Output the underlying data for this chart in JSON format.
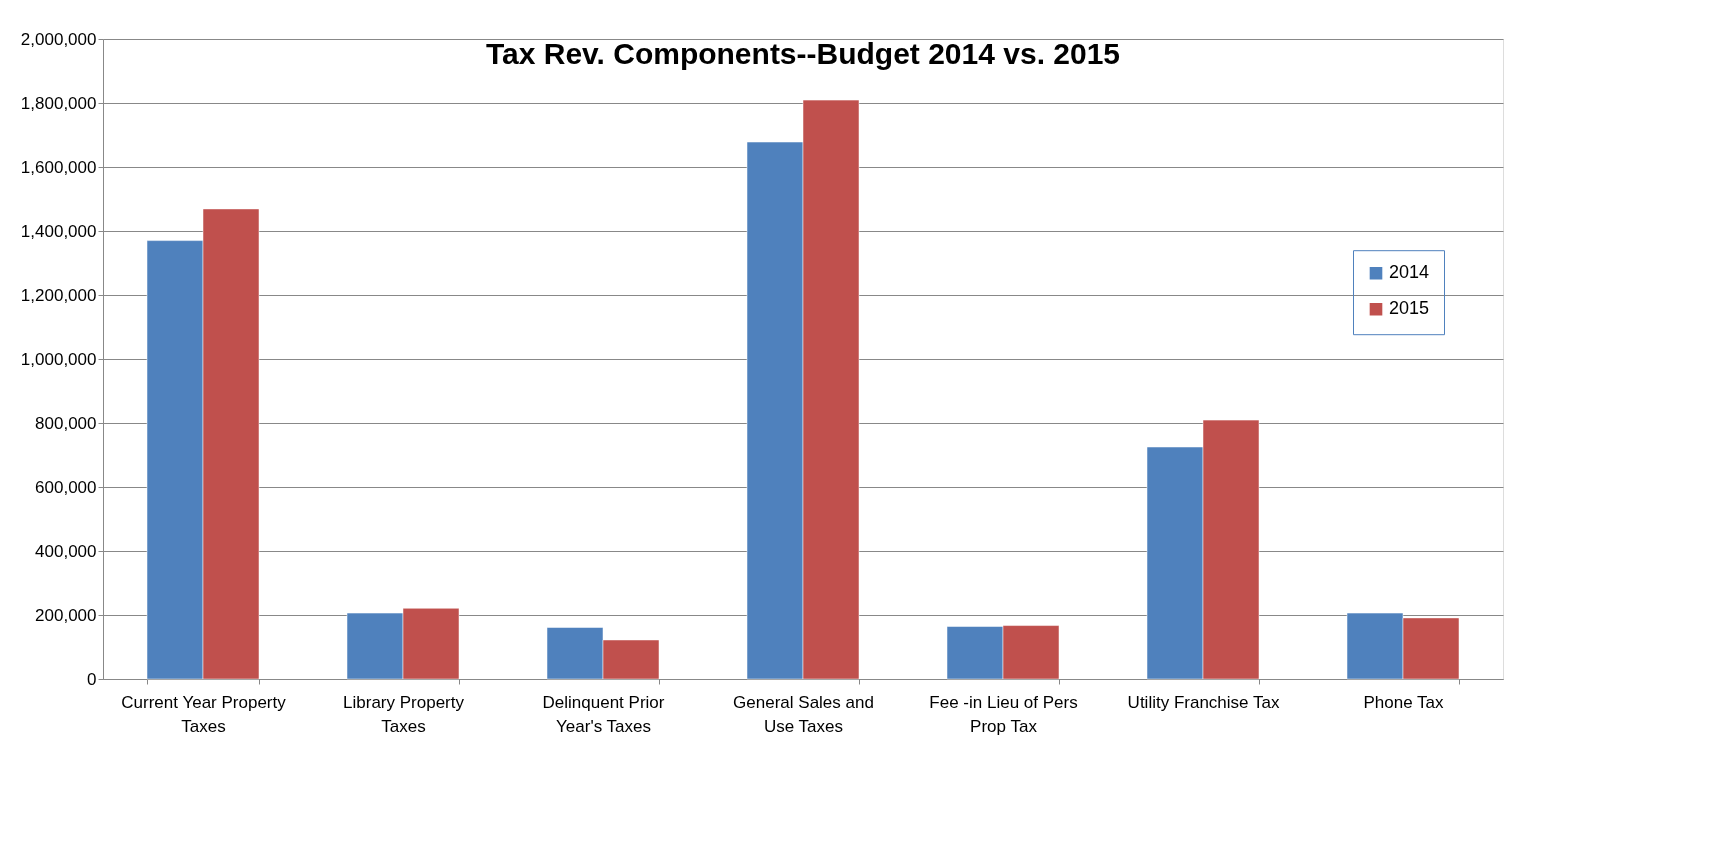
{
  "chart_data": {
    "type": "bar",
    "title": "Tax Rev. Components--Budget 2014 vs. 2015",
    "categories": [
      "Current Year Property Taxes",
      "Library Property Taxes",
      "Delinquent Prior Year's Taxes",
      "General Sales and Use Taxes",
      "Fee -in Lieu of Pers Prop Tax",
      "Utility Franchise Tax",
      "Phone Tax"
    ],
    "series": [
      {
        "name": "2014",
        "color": "#4f81bd",
        "values": [
          1370000,
          206000,
          161000,
          1678000,
          164000,
          725000,
          206000
        ]
      },
      {
        "name": "2015",
        "color": "#c0504d",
        "values": [
          1469000,
          221000,
          122000,
          1809000,
          167000,
          809000,
          191000
        ]
      }
    ],
    "ylim": [
      0,
      2000000
    ],
    "yticks": [
      0,
      {
        "value": 200000,
        "label": "200,000"
      },
      {
        "value": 400000,
        "label": "400,000"
      },
      {
        "value": 600000,
        "label": "600,000"
      },
      {
        "value": 800000,
        "label": "800,000"
      },
      {
        "value": 1000000,
        "label": "1,000,000"
      },
      {
        "value": 1200000,
        "label": "1,200,000"
      },
      {
        "value": 1400000,
        "label": "1,400,000"
      },
      {
        "value": 1600000,
        "label": "1,600,000"
      },
      {
        "value": 1800000,
        "label": "1,800,000"
      },
      {
        "value": 2000000,
        "label": "2,000,000"
      }
    ],
    "grid": "y",
    "legend": "right"
  }
}
